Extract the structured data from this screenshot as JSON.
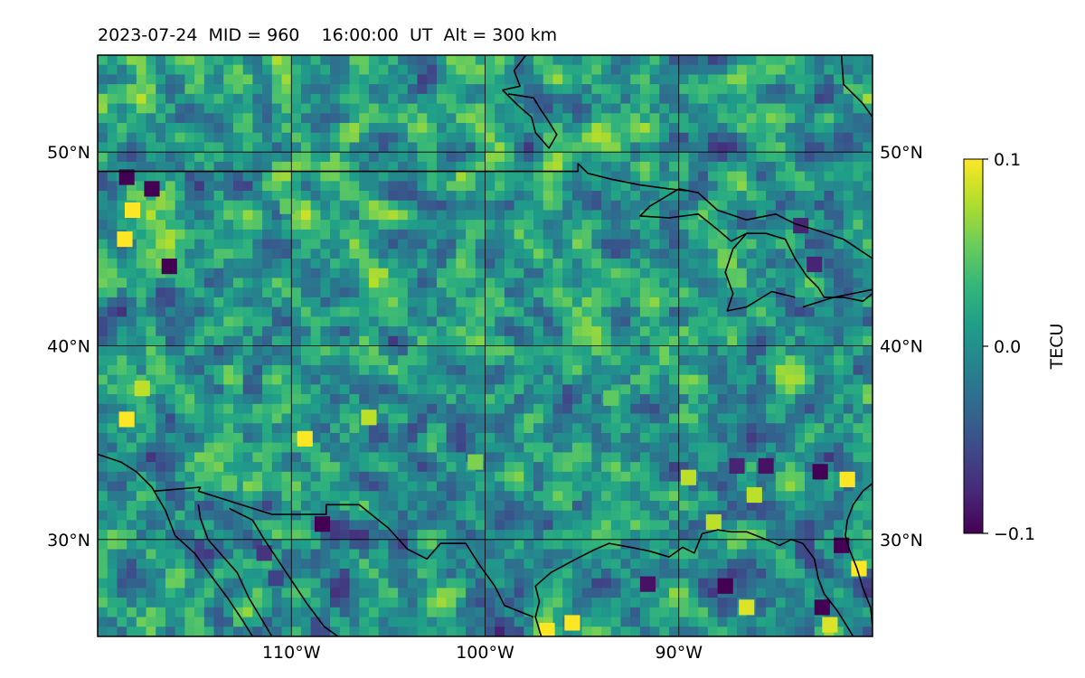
{
  "title": "2023-07-24  MID = 960    16:00:00  UT  Alt = 300 km",
  "map": {
    "lon_range": [
      -120,
      -80
    ],
    "lat_range": [
      25,
      55
    ],
    "lat_ticks": [
      {
        "value": 50,
        "label": "50°N"
      },
      {
        "value": 40,
        "label": "40°N"
      },
      {
        "value": 30,
        "label": "30°N"
      }
    ],
    "lon_ticks": [
      {
        "value": -110,
        "label": "110°W"
      },
      {
        "value": -100,
        "label": "100°W"
      },
      {
        "value": -90,
        "label": "90°W"
      }
    ],
    "coastlines": [
      [
        [
          -120,
          34.4
        ],
        [
          -118.8,
          34
        ],
        [
          -118,
          33.5
        ],
        [
          -117.2,
          32.7
        ],
        [
          -116.5,
          31.5
        ],
        [
          -116,
          30.2
        ],
        [
          -115,
          29.3
        ],
        [
          -114.2,
          28.2
        ],
        [
          -113.3,
          27
        ],
        [
          -112.5,
          25.8
        ],
        [
          -112,
          25
        ]
      ],
      [
        [
          -114.8,
          31.8
        ],
        [
          -114.7,
          31.1
        ],
        [
          -114.3,
          30
        ],
        [
          -113.6,
          29.2
        ],
        [
          -112.8,
          28.3
        ],
        [
          -112.2,
          27
        ],
        [
          -111.6,
          26
        ],
        [
          -111,
          25
        ]
      ],
      [
        [
          -113.2,
          31.6
        ],
        [
          -112,
          31
        ],
        [
          -111.4,
          30
        ],
        [
          -110.6,
          28.8
        ],
        [
          -110,
          27.9
        ],
        [
          -109.2,
          26.7
        ],
        [
          -108.3,
          25.5
        ],
        [
          -107.6,
          25
        ]
      ],
      [
        [
          -97.1,
          25
        ],
        [
          -97.4,
          26
        ],
        [
          -97.2,
          26.8
        ],
        [
          -97.4,
          27.6
        ],
        [
          -96.6,
          28.3
        ],
        [
          -95.3,
          29
        ],
        [
          -94.3,
          29.5
        ],
        [
          -93.6,
          29.8
        ],
        [
          -92.5,
          29.6
        ],
        [
          -91.5,
          29.4
        ],
        [
          -90.5,
          29.1
        ],
        [
          -89.8,
          29.6
        ],
        [
          -89.2,
          29.3
        ],
        [
          -88.8,
          30.3
        ],
        [
          -88,
          30.5
        ],
        [
          -87.3,
          30.4
        ],
        [
          -86.5,
          30.4
        ],
        [
          -85.5,
          30
        ],
        [
          -84.8,
          29.7
        ],
        [
          -84.2,
          30
        ],
        [
          -83.6,
          29.8
        ],
        [
          -83,
          29
        ],
        [
          -82.8,
          28
        ],
        [
          -82.5,
          27.2
        ],
        [
          -81.8,
          26.3
        ],
        [
          -81.3,
          25.5
        ],
        [
          -81,
          25
        ]
      ],
      [
        [
          -80,
          32.9
        ],
        [
          -80.5,
          32.5
        ],
        [
          -81,
          31.8
        ],
        [
          -81.3,
          31
        ],
        [
          -81.4,
          30.2
        ],
        [
          -81.2,
          29.5
        ],
        [
          -80.8,
          28.5
        ],
        [
          -80.5,
          27.5
        ],
        [
          -80.1,
          26.5
        ],
        [
          -80,
          25.5
        ]
      ],
      [
        [
          -80,
          44.5
        ],
        [
          -81.5,
          45.5
        ],
        [
          -83,
          46
        ],
        [
          -84,
          46.3
        ],
        [
          -85,
          46.8
        ],
        [
          -86.5,
          46.5
        ],
        [
          -88,
          47
        ],
        [
          -89,
          47.9
        ],
        [
          -90,
          48.1
        ],
        [
          -91.5,
          47.2
        ],
        [
          -92,
          46.7
        ],
        [
          -90.5,
          46.6
        ],
        [
          -89,
          46.8
        ],
        [
          -88,
          46
        ],
        [
          -87.3,
          45.4
        ],
        [
          -86.5,
          45.8
        ],
        [
          -85.5,
          45.8
        ],
        [
          -84.5,
          45.5
        ],
        [
          -84,
          44.5
        ],
        [
          -83.4,
          43.6
        ],
        [
          -82.8,
          43
        ],
        [
          -82.5,
          42.5
        ],
        [
          -81.5,
          42.5
        ],
        [
          -80.5,
          42.3
        ],
        [
          -80,
          42.7
        ]
      ]
    ],
    "borders": [
      [
        [
          -120,
          49
        ],
        [
          -95.2,
          49
        ],
        [
          -95.2,
          49.4
        ],
        [
          -94.7,
          48.9
        ],
        [
          -93.5,
          48.6
        ],
        [
          -92,
          48.3
        ],
        [
          -90.5,
          48.1
        ],
        [
          -89.6,
          48
        ]
      ],
      [
        [
          -117.1,
          32.5
        ],
        [
          -114.7,
          32.7
        ],
        [
          -114.8,
          32.5
        ],
        [
          -111,
          31.3
        ],
        [
          -108.2,
          31.3
        ],
        [
          -108.2,
          31.8
        ],
        [
          -106.5,
          31.8
        ],
        [
          -105,
          30.6
        ],
        [
          -104,
          29.5
        ],
        [
          -103,
          29
        ],
        [
          -102.3,
          29.8
        ],
        [
          -101,
          29.8
        ],
        [
          -100.3,
          28.7
        ],
        [
          -99.5,
          27.6
        ],
        [
          -99,
          26.6
        ],
        [
          -97.5,
          26
        ]
      ]
    ],
    "bay_outlines": [
      [
        [
          -97.9,
          55
        ],
        [
          -98.5,
          54.2
        ],
        [
          -98.2,
          53.4
        ],
        [
          -99.1,
          53.2
        ],
        [
          -98.3,
          52.4
        ],
        [
          -97.6,
          51.8
        ],
        [
          -97.4,
          51
        ],
        [
          -96.7,
          50.2
        ],
        [
          -96.3,
          50.9
        ],
        [
          -96.8,
          51.7
        ],
        [
          -97.2,
          52.3
        ],
        [
          -97.5,
          52.8
        ],
        [
          -98.8,
          53
        ]
      ],
      [
        [
          -81.6,
          55
        ],
        [
          -81.5,
          53.5
        ],
        [
          -80.5,
          52.5
        ],
        [
          -80,
          51.8
        ]
      ],
      [
        [
          -84,
          42.5
        ],
        [
          -85.2,
          42.8
        ],
        [
          -86.5,
          42
        ],
        [
          -87.5,
          41.8
        ],
        [
          -87.2,
          42.7
        ],
        [
          -87.6,
          43.8
        ],
        [
          -87.2,
          45
        ],
        [
          -86.5,
          45.8
        ]
      ],
      [
        [
          -83.6,
          42
        ],
        [
          -82,
          42.5
        ],
        [
          -81,
          42.7
        ],
        [
          -80,
          42.9
        ]
      ]
    ],
    "hotspots": [
      {
        "lon": -118.6,
        "lat": 45.5,
        "value": 0.1
      },
      {
        "lon": -118.2,
        "lat": 47,
        "value": 0.1
      },
      {
        "lon": -117.2,
        "lat": 48.1,
        "value": -0.1
      },
      {
        "lon": -118.5,
        "lat": 48.7,
        "value": -0.1
      },
      {
        "lon": -116.3,
        "lat": 44.1,
        "value": -0.1
      },
      {
        "lon": -118.5,
        "lat": 36.2,
        "value": 0.1
      },
      {
        "lon": -117.7,
        "lat": 37.8,
        "value": 0.08
      },
      {
        "lon": -109.3,
        "lat": 35.2,
        "value": 0.1
      },
      {
        "lon": -108.4,
        "lat": 30.8,
        "value": -0.1
      },
      {
        "lon": -111.4,
        "lat": 29.3,
        "value": -0.07
      },
      {
        "lon": -110.8,
        "lat": 28,
        "value": -0.06
      },
      {
        "lon": -95.5,
        "lat": 25.7,
        "value": 0.1
      },
      {
        "lon": -96.8,
        "lat": 25.3,
        "value": 0.1
      },
      {
        "lon": -89.5,
        "lat": 33.2,
        "value": 0.08
      },
      {
        "lon": -87.6,
        "lat": 27.6,
        "value": -0.1
      },
      {
        "lon": -86.5,
        "lat": 26.5,
        "value": 0.09
      },
      {
        "lon": -82.6,
        "lat": 26.5,
        "value": -0.1
      },
      {
        "lon": -82.2,
        "lat": 25.6,
        "value": 0.09
      },
      {
        "lon": -80.7,
        "lat": 28.5,
        "value": 0.1
      },
      {
        "lon": -81.3,
        "lat": 33.1,
        "value": 0.1
      },
      {
        "lon": -82.7,
        "lat": 33.5,
        "value": -0.1
      },
      {
        "lon": -86.1,
        "lat": 32.3,
        "value": 0.08
      },
      {
        "lon": -88.2,
        "lat": 30.9,
        "value": 0.08
      },
      {
        "lon": -81.6,
        "lat": 29.7,
        "value": -0.1
      },
      {
        "lon": -85.5,
        "lat": 33.8,
        "value": -0.09
      },
      {
        "lon": -87,
        "lat": 33.8,
        "value": -0.08
      },
      {
        "lon": -91.6,
        "lat": 27.7,
        "value": -0.09
      },
      {
        "lon": -83,
        "lat": 44.2,
        "value": -0.08
      },
      {
        "lon": -83.7,
        "lat": 46.2,
        "value": -0.08
      },
      {
        "lon": -93.5,
        "lat": 37.3,
        "value": 0.05
      },
      {
        "lon": -100.5,
        "lat": 34,
        "value": 0.06
      },
      {
        "lon": -113.2,
        "lat": 32.9,
        "value": 0.05
      },
      {
        "lon": -106,
        "lat": 36.3,
        "value": 0.08
      },
      {
        "lon": -110.2,
        "lat": 47.2,
        "value": 0.05
      }
    ]
  },
  "colorbar": {
    "label": "TECU",
    "min": -0.1,
    "max": 0.1,
    "ticks": [
      {
        "value": 0.1,
        "label": "0.1"
      },
      {
        "value": 0.0,
        "label": "0.0"
      },
      {
        "value": -0.1,
        "label": "−0.1"
      }
    ],
    "stops": [
      "#440154",
      "#482878",
      "#3e4989",
      "#31688e",
      "#26828e",
      "#1f9e89",
      "#35b779",
      "#6ece58",
      "#b5de2b",
      "#fde725"
    ]
  }
}
